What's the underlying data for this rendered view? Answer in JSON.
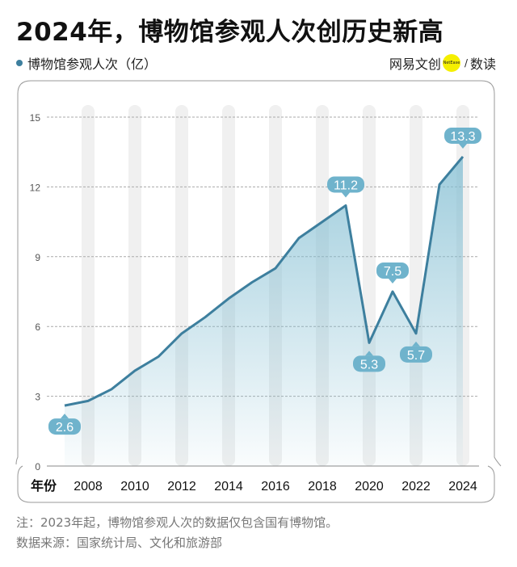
{
  "title": "2024年，博物馆参观人次创历史新高",
  "brand": {
    "name": "网易文创",
    "logo_text": "NetEase",
    "separator": "/",
    "column": "数读"
  },
  "notes": {
    "note": "注：2023年起，博物馆参观人次的数据仅包含国有博物馆。",
    "source": "数据来源：国家统计局、文化和旅游部"
  },
  "chart_data": {
    "type": "area",
    "legend": "博物馆参观人次（亿）",
    "xlabel": "年份",
    "x": [
      2007,
      2008,
      2009,
      2010,
      2011,
      2012,
      2013,
      2014,
      2015,
      2016,
      2017,
      2018,
      2019,
      2020,
      2021,
      2022,
      2023,
      2024
    ],
    "values": [
      2.6,
      2.8,
      3.3,
      4.1,
      4.7,
      5.7,
      6.4,
      7.2,
      7.9,
      8.5,
      9.8,
      10.5,
      11.2,
      5.3,
      7.5,
      5.7,
      12.1,
      13.3
    ],
    "x_tick_labels": [
      "2008",
      "2010",
      "2012",
      "2014",
      "2016",
      "2018",
      "2020",
      "2022",
      "2024"
    ],
    "y_ticks": [
      0,
      3,
      6,
      9,
      12,
      15
    ],
    "ylim": [
      0,
      15
    ],
    "grid": "horizontal dashed",
    "data_labels": [
      {
        "year": 2007,
        "text": "2.6",
        "position": "below"
      },
      {
        "year": 2019,
        "text": "11.2",
        "position": "above"
      },
      {
        "year": 2020,
        "text": "5.3",
        "position": "below"
      },
      {
        "year": 2021,
        "text": "7.5",
        "position": "above"
      },
      {
        "year": 2022,
        "text": "5.7",
        "position": "below"
      },
      {
        "year": 2024,
        "text": "13.3",
        "position": "above"
      }
    ],
    "colors": {
      "line": "#3d7f9e",
      "fill": "#7fbcd1",
      "label_bg": "#6fb3cc",
      "band": "#f0f0f0"
    }
  }
}
